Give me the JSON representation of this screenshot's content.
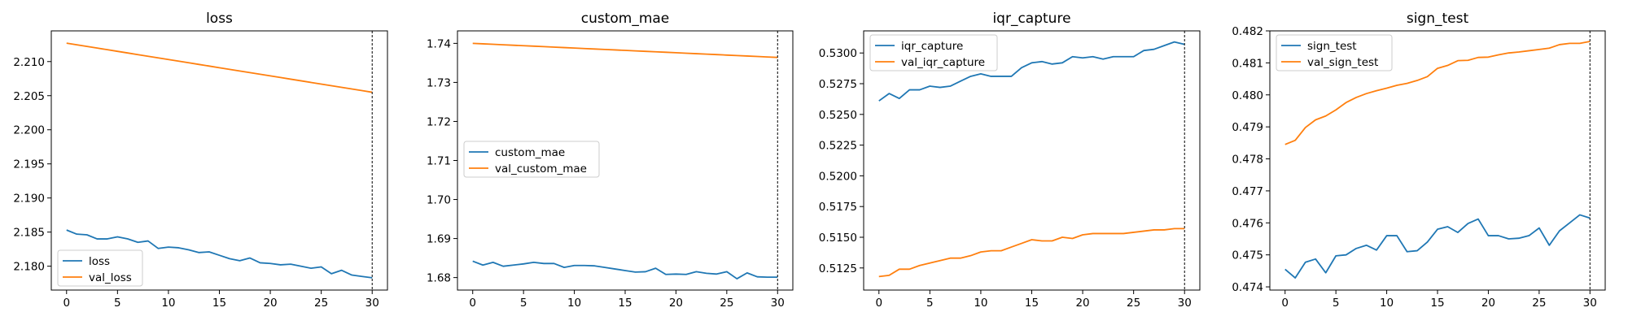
{
  "colors": {
    "series0": "#1f77b4",
    "series1": "#ff7f0e"
  },
  "chart_data": [
    {
      "type": "line",
      "title": "loss",
      "xlim": [
        -1.5,
        31.5
      ],
      "ylim": [
        2.1765,
        2.2145
      ],
      "xticks": [
        0,
        5,
        10,
        15,
        20,
        25,
        30
      ],
      "yticks": [
        2.18,
        2.185,
        2.19,
        2.195,
        2.2,
        2.205,
        2.21
      ],
      "ytick_labels": [
        "2.180",
        "2.185",
        "2.190",
        "2.195",
        "2.200",
        "2.205",
        "2.210"
      ],
      "vline_x": 30,
      "legend": "lower-left",
      "x": [
        0,
        1,
        2,
        3,
        4,
        5,
        6,
        7,
        8,
        9,
        10,
        11,
        12,
        13,
        14,
        15,
        16,
        17,
        18,
        19,
        20,
        21,
        22,
        23,
        24,
        25,
        26,
        27,
        28,
        29,
        30
      ],
      "series": [
        {
          "name": "loss",
          "values": [
            2.1853,
            2.1847,
            2.1846,
            2.184,
            2.184,
            2.1843,
            2.184,
            2.1835,
            2.1837,
            2.1826,
            2.1828,
            2.1827,
            2.1824,
            2.182,
            2.1821,
            2.1816,
            2.1811,
            2.1808,
            2.1812,
            2.1805,
            2.1804,
            2.1802,
            2.1803,
            2.18,
            2.1797,
            2.1799,
            2.1789,
            2.1794,
            2.1787,
            2.1785,
            2.1783
          ]
        },
        {
          "name": "val_loss",
          "values": [
            2.2127,
            2.21246,
            2.21222,
            2.21198,
            2.21174,
            2.2115,
            2.21126,
            2.21102,
            2.21078,
            2.21054,
            2.2103,
            2.21006,
            2.20982,
            2.20958,
            2.20934,
            2.2091,
            2.20886,
            2.20862,
            2.20838,
            2.20814,
            2.2079,
            2.20766,
            2.20742,
            2.20718,
            2.20694,
            2.2067,
            2.20646,
            2.20622,
            2.20598,
            2.20574,
            2.2055
          ]
        }
      ]
    },
    {
      "type": "line",
      "title": "custom_mae",
      "xlim": [
        -1.5,
        31.5
      ],
      "ylim": [
        1.6768,
        1.7432
      ],
      "xticks": [
        0,
        5,
        10,
        15,
        20,
        25,
        30
      ],
      "yticks": [
        1.68,
        1.69,
        1.7,
        1.71,
        1.72,
        1.73,
        1.74
      ],
      "ytick_labels": [
        "1.68",
        "1.69",
        "1.70",
        "1.71",
        "1.72",
        "1.73",
        "1.74"
      ],
      "vline_x": 30,
      "legend": "center-left",
      "x": [
        0,
        1,
        2,
        3,
        4,
        5,
        6,
        7,
        8,
        9,
        10,
        11,
        12,
        13,
        14,
        15,
        16,
        17,
        18,
        19,
        20,
        21,
        22,
        23,
        24,
        25,
        26,
        27,
        28,
        29,
        30
      ],
      "series": [
        {
          "name": "custom_mae",
          "values": [
            1.6842,
            1.6832,
            1.6839,
            1.6829,
            1.6832,
            1.6835,
            1.6839,
            1.6836,
            1.6836,
            1.6826,
            1.6831,
            1.6831,
            1.683,
            1.6826,
            1.6822,
            1.6818,
            1.6814,
            1.6815,
            1.6824,
            1.6808,
            1.6809,
            1.6808,
            1.6815,
            1.6811,
            1.6809,
            1.6815,
            1.6797,
            1.6812,
            1.6802,
            1.6801,
            1.6801
          ]
        },
        {
          "name": "val_custom_mae",
          "values": [
            1.74,
            1.73988,
            1.73976,
            1.73964,
            1.73952,
            1.7394,
            1.73928,
            1.73916,
            1.73904,
            1.73892,
            1.7388,
            1.73868,
            1.73856,
            1.73844,
            1.73832,
            1.7382,
            1.73808,
            1.73796,
            1.73784,
            1.73772,
            1.7376,
            1.73748,
            1.73736,
            1.73724,
            1.73712,
            1.737,
            1.73688,
            1.73676,
            1.73664,
            1.73652,
            1.7364
          ]
        }
      ]
    },
    {
      "type": "line",
      "title": "iqr_capture",
      "xlim": [
        -1.5,
        31.5
      ],
      "ylim": [
        0.5107,
        0.5318
      ],
      "xticks": [
        0,
        5,
        10,
        15,
        20,
        25,
        30
      ],
      "yticks": [
        0.5125,
        0.515,
        0.5175,
        0.52,
        0.5225,
        0.525,
        0.5275,
        0.53
      ],
      "ytick_labels": [
        "0.5125",
        "0.5150",
        "0.5175",
        "0.5200",
        "0.5225",
        "0.5250",
        "0.5275",
        "0.5300"
      ],
      "vline_x": 30,
      "legend": "upper-left",
      "x": [
        0,
        1,
        2,
        3,
        4,
        5,
        6,
        7,
        8,
        9,
        10,
        11,
        12,
        13,
        14,
        15,
        16,
        17,
        18,
        19,
        20,
        21,
        22,
        23,
        24,
        25,
        26,
        27,
        28,
        29,
        30
      ],
      "series": [
        {
          "name": "iqr_capture",
          "values": [
            0.5261,
            0.5267,
            0.5263,
            0.527,
            0.527,
            0.5273,
            0.5272,
            0.5273,
            0.5277,
            0.5281,
            0.5283,
            0.5281,
            0.5281,
            0.5281,
            0.5288,
            0.5292,
            0.5293,
            0.5291,
            0.5292,
            0.5297,
            0.5296,
            0.5297,
            0.5295,
            0.5297,
            0.5297,
            0.5297,
            0.5302,
            0.5303,
            0.5306,
            0.5309,
            0.5307
          ]
        },
        {
          "name": "val_iqr_capture",
          "values": [
            0.5118,
            0.5119,
            0.5124,
            0.5124,
            0.5127,
            0.5129,
            0.5131,
            0.5133,
            0.5133,
            0.5135,
            0.5138,
            0.5139,
            0.5139,
            0.5142,
            0.5145,
            0.5148,
            0.5147,
            0.5147,
            0.515,
            0.5149,
            0.5152,
            0.5153,
            0.5153,
            0.5153,
            0.5153,
            0.5154,
            0.5155,
            0.5156,
            0.5156,
            0.5157,
            0.5157
          ]
        }
      ]
    },
    {
      "type": "line",
      "title": "sign_test",
      "xlim": [
        -1.5,
        31.5
      ],
      "ylim": [
        0.4739,
        0.482
      ],
      "xticks": [
        0,
        5,
        10,
        15,
        20,
        25,
        30
      ],
      "yticks": [
        0.474,
        0.475,
        0.476,
        0.477,
        0.478,
        0.479,
        0.48,
        0.481,
        0.482
      ],
      "ytick_labels": [
        "0.474",
        "0.475",
        "0.476",
        "0.477",
        "0.478",
        "0.479",
        "0.480",
        "0.481",
        "0.482"
      ],
      "vline_x": 30,
      "legend": "upper-left",
      "x": [
        0,
        1,
        2,
        3,
        4,
        5,
        6,
        7,
        8,
        9,
        10,
        11,
        12,
        13,
        14,
        15,
        16,
        17,
        18,
        19,
        20,
        21,
        22,
        23,
        24,
        25,
        26,
        27,
        28,
        29,
        30
      ],
      "series": [
        {
          "name": "sign_test",
          "values": [
            0.47455,
            0.47428,
            0.47477,
            0.47487,
            0.47444,
            0.47497,
            0.475,
            0.4752,
            0.4753,
            0.47515,
            0.4756,
            0.4756,
            0.4751,
            0.47513,
            0.4754,
            0.4758,
            0.47588,
            0.4757,
            0.47598,
            0.47612,
            0.4756,
            0.4756,
            0.4755,
            0.47552,
            0.4756,
            0.47584,
            0.4753,
            0.47575,
            0.476,
            0.47625,
            0.47615
          ]
        },
        {
          "name": "val_sign_test",
          "values": [
            0.47845,
            0.47858,
            0.47898,
            0.47922,
            0.47934,
            0.47953,
            0.47976,
            0.47992,
            0.48004,
            0.48013,
            0.48021,
            0.4803,
            0.48036,
            0.48045,
            0.48057,
            0.48083,
            0.48092,
            0.48107,
            0.48108,
            0.48117,
            0.48118,
            0.48125,
            0.48131,
            0.48134,
            0.48138,
            0.48142,
            0.48146,
            0.48157,
            0.48161,
            0.48161,
            0.48167
          ]
        }
      ]
    }
  ]
}
